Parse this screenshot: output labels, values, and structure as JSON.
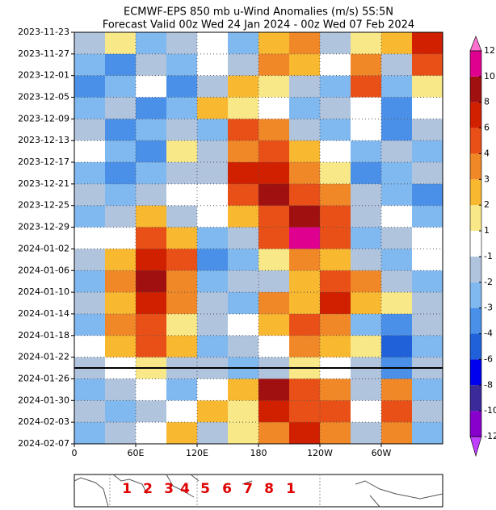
{
  "chart_data": {
    "type": "heatmap",
    "title": "ECMWF-EPS 850 mb u-Wind Anomalies (m/s) 5S:5N",
    "subtitle": "Forecast Valid 00z Wed 24 Jan 2024 - 00z Wed 07 Feb 2024",
    "xlim": [
      0,
      360
    ],
    "xticks": [
      0,
      {
        "value": 60,
        "label": "60E"
      },
      {
        "value": 120,
        "label": "120E"
      },
      180,
      {
        "value": 240,
        "label": "120W"
      },
      {
        "value": 300,
        "label": "60W"
      }
    ],
    "ylim": [
      0,
      76
    ],
    "yticks": [
      {
        "value": 0,
        "label": "2023-11-23"
      },
      {
        "value": 4,
        "label": "2023-11-27"
      },
      {
        "value": 8,
        "label": "2023-12-01"
      },
      {
        "value": 12,
        "label": "2023-12-05"
      },
      {
        "value": 16,
        "label": "2023-12-09"
      },
      {
        "value": 20,
        "label": "2023-12-13"
      },
      {
        "value": 24,
        "label": "2023-12-17"
      },
      {
        "value": 28,
        "label": "2023-12-21"
      },
      {
        "value": 32,
        "label": "2023-12-25"
      },
      {
        "value": 36,
        "label": "2023-12-29"
      },
      {
        "value": 40,
        "label": "2024-01-02"
      },
      {
        "value": 44,
        "label": "2024-01-06"
      },
      {
        "value": 48,
        "label": "2024-01-10"
      },
      {
        "value": 52,
        "label": "2024-01-14"
      },
      {
        "value": 56,
        "label": "2024-01-18"
      },
      {
        "value": 60,
        "label": "2024-01-22"
      },
      {
        "value": 64,
        "label": "2024-01-26"
      },
      {
        "value": 68,
        "label": "2024-01-30"
      },
      {
        "value": 72,
        "label": "2024-02-03"
      },
      {
        "value": 76,
        "label": "2024-02-07"
      }
    ],
    "hline": 62,
    "grid": true,
    "levels": [
      -12,
      -10,
      -8,
      -6,
      -4,
      -3,
      -2,
      -1,
      1,
      2,
      3,
      4,
      6,
      8,
      10,
      12
    ],
    "colors": [
      "#c040ff",
      "#8800cc",
      "#3a2a9a",
      "#0000ee",
      "#2060d8",
      "#4a90e8",
      "#80b8f0",
      "#b0c4de",
      "#ffffff",
      "#f8e888",
      "#f8b830",
      "#f08828",
      "#e85018",
      "#d02000",
      "#a01010",
      "#e00090",
      "#ff70d0"
    ],
    "z": [
      [
        -2,
        1,
        -3,
        -2,
        -1,
        -3,
        2,
        3,
        -2,
        1,
        2,
        6
      ],
      [
        -3,
        -4,
        -2,
        -3,
        -1,
        -2,
        3,
        2,
        -1,
        3,
        -2,
        4
      ],
      [
        -4,
        -3,
        -1,
        -4,
        -2,
        2,
        1,
        -2,
        -3,
        4,
        -3,
        1
      ],
      [
        -3,
        -2,
        -4,
        -3,
        2,
        1,
        -1,
        -3,
        -2,
        -1,
        -4,
        -1
      ],
      [
        -2,
        -4,
        -3,
        -2,
        -3,
        4,
        3,
        -2,
        -3,
        -1,
        -4,
        -2
      ],
      [
        -1,
        -3,
        -4,
        1,
        -2,
        3,
        5,
        2,
        -1,
        -3,
        -2,
        -3
      ],
      [
        -3,
        -4,
        -3,
        -2,
        -2,
        6,
        6,
        3,
        1,
        -4,
        -3,
        -2
      ],
      [
        -2,
        -3,
        -2,
        -1,
        -1,
        4,
        8,
        4,
        3,
        -2,
        -3,
        -4
      ],
      [
        -3,
        -2,
        2,
        -2,
        -1,
        2,
        5,
        8,
        5,
        -2,
        -1,
        -3
      ],
      [
        -1,
        -1,
        4,
        2,
        -3,
        -2,
        4,
        10,
        4,
        -3,
        -2,
        -1
      ],
      [
        -2,
        2,
        6,
        4,
        -4,
        -3,
        1,
        3,
        2,
        -2,
        -3,
        -1
      ],
      [
        -3,
        3,
        8,
        3,
        -3,
        -2,
        -2,
        2,
        4,
        3,
        -2,
        -3
      ],
      [
        -2,
        2,
        6,
        3,
        -2,
        -3,
        3,
        2,
        6,
        2,
        1,
        -2
      ],
      [
        -3,
        3,
        4,
        1,
        -2,
        -1,
        2,
        4,
        3,
        -3,
        -4,
        -2
      ],
      [
        -1,
        2,
        5,
        2,
        -3,
        -2,
        -1,
        3,
        2,
        1,
        -5,
        -3
      ],
      [
        -2,
        -1,
        1,
        -2,
        -2,
        -3,
        -2,
        1,
        -1,
        -2,
        -4,
        -2
      ],
      [
        -3,
        -2,
        -1,
        -3,
        -1,
        2,
        8,
        4,
        3,
        -2,
        3,
        -3
      ],
      [
        -2,
        -3,
        -2,
        -1,
        2,
        1,
        6,
        5,
        4,
        -1,
        4,
        -2
      ],
      [
        -3,
        -2,
        -1,
        2,
        -2,
        1,
        3,
        6,
        3,
        -2,
        3,
        -3
      ]
    ],
    "phases": [
      "1",
      "2",
      "3",
      "4",
      "5",
      "6",
      "7",
      "8",
      "1"
    ]
  }
}
